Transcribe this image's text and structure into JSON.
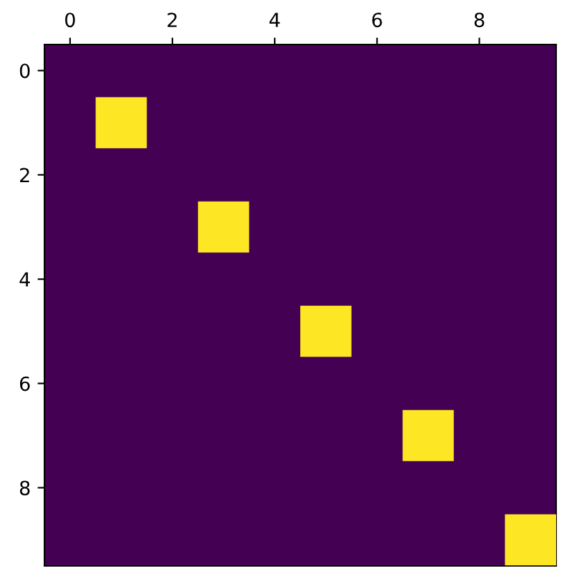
{
  "chart_data": {
    "type": "scatter",
    "x": [
      1,
      3,
      5,
      7,
      9
    ],
    "series": [
      {
        "color": "#fde725",
        "values": [
          1,
          3,
          5,
          7,
          9
        ]
      }
    ],
    "marker": "square",
    "xlim": [
      -0.5,
      9.5
    ],
    "ylim": [
      9.5,
      -0.5
    ],
    "xticks": [
      0,
      2,
      4,
      6,
      8
    ],
    "yticks": [
      0,
      2,
      4,
      6,
      8
    ],
    "grid": false
  }
}
